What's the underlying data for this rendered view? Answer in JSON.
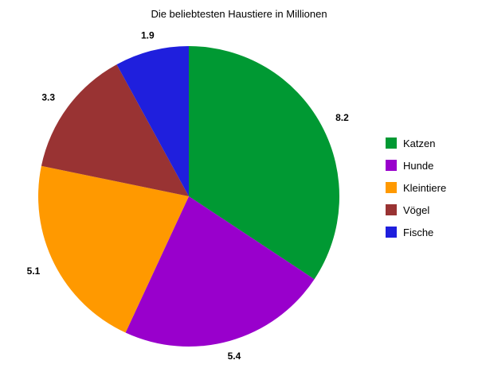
{
  "chart_data": {
    "type": "pie",
    "title": "Die beliebtesten Haustiere in Millionen",
    "categories": [
      "Katzen",
      "Hunde",
      "Kleintiere",
      "Vögel",
      "Fische"
    ],
    "values": [
      8.2,
      5.4,
      5.1,
      3.3,
      1.9
    ],
    "value_labels": [
      "8.2",
      "5.4",
      "5.1",
      "3.3",
      "1.9"
    ],
    "colors": [
      "#009933",
      "#9900cc",
      "#ff9900",
      "#993333",
      "#1f1fdd"
    ],
    "start_angle": "top, clockwise",
    "legend": "right",
    "grid": false
  }
}
